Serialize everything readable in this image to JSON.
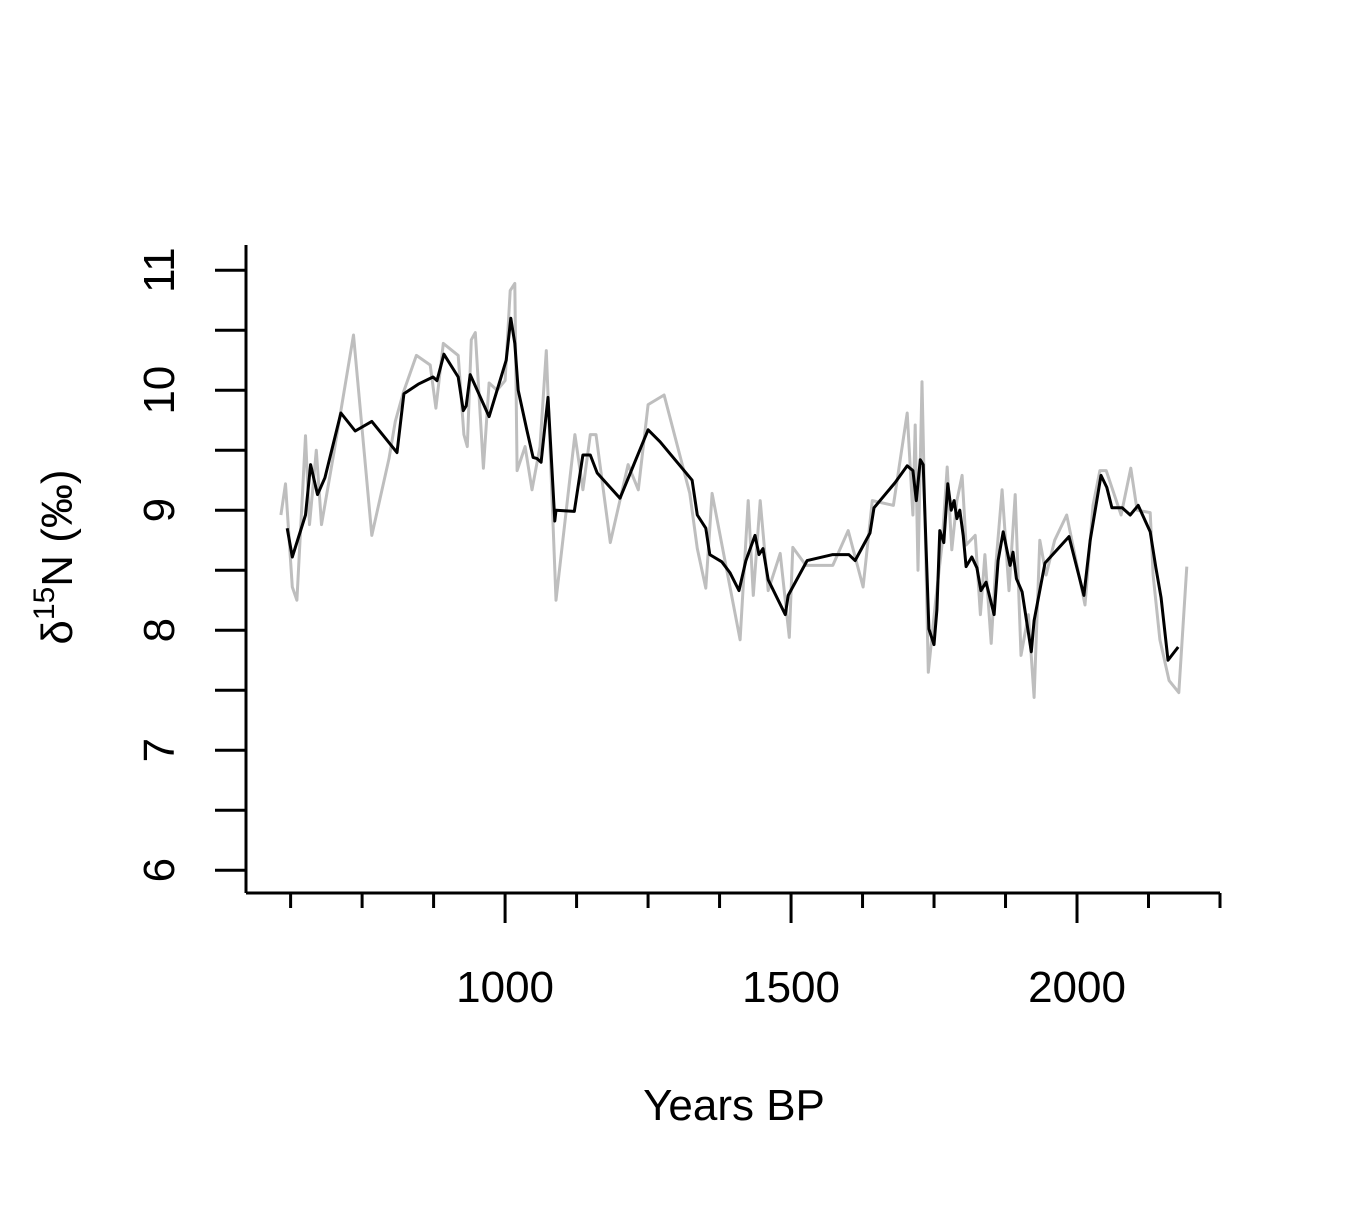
{
  "chart_data": {
    "type": "line",
    "xlabel": "Years BP",
    "ylabel": {
      "symbol": "δ",
      "superscript": "15",
      "main": "N (‰)"
    },
    "xlim": [
      547,
      2250
    ],
    "ylim": [
      5.81,
      11.21
    ],
    "xticks": [
      1000,
      1500,
      2000
    ],
    "xminor_ticks": [
      625,
      750,
      875,
      1125,
      1250,
      1375,
      1625,
      1750,
      1875,
      2125,
      2250
    ],
    "yticks": [
      6,
      7,
      8,
      9,
      10,
      11
    ],
    "yminor_ticks": [
      6.5,
      7.5,
      8.5,
      9.5,
      10.5
    ],
    "series": [
      {
        "color": "#bebebe",
        "x": [
          608,
          616,
          628,
          636,
          651,
          658,
          670,
          679,
          700,
          735,
          767,
          797,
          808,
          822,
          845,
          869,
          879,
          892,
          918,
          928,
          934,
          941,
          948,
          962,
          972,
          986,
          1000,
          1009,
          1017,
          1021,
          1035,
          1047,
          1061,
          1072,
          1089,
          1122,
          1136,
          1149,
          1159,
          1184,
          1215,
          1233,
          1250,
          1278,
          1323,
          1336,
          1351,
          1362,
          1411,
          1425,
          1434,
          1446,
          1460,
          1481,
          1497,
          1503,
          1526,
          1573,
          1600,
          1626,
          1642,
          1679,
          1703,
          1713,
          1717,
          1722,
          1729,
          1740,
          1753,
          1764,
          1773,
          1781,
          1790,
          1799,
          1806,
          1822,
          1831,
          1839,
          1850,
          1858,
          1869,
          1881,
          1892,
          1902,
          1915,
          1925,
          1935,
          1946,
          1961,
          1982,
          2000,
          2014,
          2028,
          2040,
          2051,
          2077,
          2094,
          2105,
          2128,
          2133,
          2145,
          2161,
          2178,
          2192
        ],
        "values": [
          8.96,
          9.22,
          8.36,
          8.25,
          9.62,
          8.88,
          9.5,
          8.88,
          9.46,
          10.46,
          8.79,
          9.43,
          9.74,
          9.98,
          10.29,
          10.21,
          9.85,
          10.39,
          10.29,
          9.63,
          9.53,
          10.42,
          10.48,
          9.35,
          10.06,
          10.0,
          10.08,
          10.83,
          10.89,
          9.33,
          9.53,
          9.17,
          9.53,
          10.33,
          8.25,
          9.63,
          9.17,
          9.63,
          9.63,
          8.73,
          9.38,
          9.17,
          9.88,
          9.96,
          9.14,
          8.68,
          8.35,
          9.14,
          7.92,
          9.08,
          8.29,
          9.08,
          8.33,
          8.64,
          7.94,
          8.69,
          8.54,
          8.54,
          8.83,
          8.36,
          9.08,
          9.04,
          9.81,
          8.96,
          9.71,
          8.5,
          10.07,
          7.65,
          8.25,
          8.71,
          9.36,
          8.67,
          9.08,
          9.29,
          8.71,
          8.79,
          8.13,
          8.63,
          7.89,
          8.54,
          9.17,
          8.33,
          9.13,
          7.79,
          8.13,
          7.44,
          8.75,
          8.46,
          8.75,
          8.96,
          8.54,
          8.21,
          9.04,
          9.33,
          9.33,
          8.96,
          9.35,
          9.0,
          8.98,
          8.46,
          7.92,
          7.58,
          7.48,
          8.53
        ]
      },
      {
        "color": "#000000",
        "x": [
          619,
          628,
          651,
          660,
          672,
          685,
          713,
          738,
          767,
          811,
          823,
          848,
          874,
          881,
          893,
          918,
          927,
          932,
          939,
          972,
          1002,
          1010,
          1017,
          1023,
          1038,
          1049,
          1056,
          1063,
          1075,
          1087,
          1089,
          1121,
          1136,
          1149,
          1161,
          1201,
          1250,
          1271,
          1327,
          1336,
          1351,
          1358,
          1379,
          1393,
          1409,
          1421,
          1437,
          1444,
          1451,
          1460,
          1490,
          1495,
          1528,
          1573,
          1601,
          1612,
          1638,
          1645,
          1682,
          1703,
          1713,
          1719,
          1726,
          1731,
          1741,
          1750,
          1755,
          1760,
          1767,
          1774,
          1780,
          1785,
          1790,
          1795,
          1801,
          1806,
          1816,
          1825,
          1832,
          1841,
          1855,
          1862,
          1871,
          1883,
          1888,
          1894,
          1904,
          1920,
          1925,
          1944,
          1986,
          2012,
          2023,
          2042,
          2052,
          2061,
          2079,
          2093,
          2107,
          2128,
          2138,
          2147,
          2159,
          2177
        ],
        "values": [
          8.85,
          8.61,
          8.96,
          9.38,
          9.13,
          9.27,
          9.81,
          9.66,
          9.74,
          9.48,
          9.97,
          10.05,
          10.11,
          10.08,
          10.3,
          10.11,
          9.83,
          9.87,
          10.13,
          9.78,
          10.25,
          10.6,
          10.39,
          10.0,
          9.67,
          9.44,
          9.43,
          9.4,
          9.94,
          8.91,
          9.0,
          8.99,
          9.46,
          9.46,
          9.31,
          9.1,
          9.67,
          9.57,
          9.25,
          8.96,
          8.85,
          8.63,
          8.57,
          8.48,
          8.33,
          8.58,
          8.79,
          8.63,
          8.68,
          8.42,
          8.13,
          8.29,
          8.58,
          8.63,
          8.63,
          8.58,
          8.81,
          9.02,
          9.23,
          9.37,
          9.33,
          9.08,
          9.42,
          9.38,
          8.01,
          7.88,
          8.17,
          8.83,
          8.73,
          9.22,
          9.0,
          9.08,
          8.93,
          9.0,
          8.79,
          8.53,
          8.61,
          8.52,
          8.33,
          8.4,
          8.13,
          8.58,
          8.82,
          8.54,
          8.65,
          8.43,
          8.32,
          7.82,
          8.08,
          8.56,
          8.78,
          8.29,
          8.75,
          9.29,
          9.19,
          9.02,
          9.02,
          8.96,
          9.04,
          8.82,
          8.52,
          8.27,
          7.75,
          7.86
        ]
      }
    ]
  }
}
